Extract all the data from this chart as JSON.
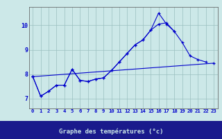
{
  "title": "Graphe des températures (°c)",
  "background_color": "#cce8e8",
  "plot_bg_color": "#cce8e8",
  "xaxis_bg_color": "#1a1a8c",
  "line_color": "#0000cc",
  "label_color": "#0000cc",
  "xlabel_text_color": "#cce8e8",
  "grid_color": "#9bbfbf",
  "x_ticks": [
    0,
    1,
    2,
    3,
    4,
    5,
    6,
    7,
    8,
    9,
    10,
    11,
    12,
    13,
    14,
    15,
    16,
    17,
    18,
    19,
    20,
    21,
    22,
    23
  ],
  "ylim": [
    6.6,
    10.75
  ],
  "yticks": [
    7,
    8,
    9,
    10
  ],
  "series1": [
    7.9,
    7.1,
    7.3,
    7.55,
    7.55,
    8.2,
    7.75,
    7.7,
    7.8,
    7.85,
    8.15,
    8.5,
    8.85,
    9.2,
    9.4,
    9.8,
    10.5,
    10.05,
    9.75,
    null,
    null,
    null,
    null,
    null
  ],
  "series2": [
    7.9,
    7.1,
    7.3,
    7.55,
    7.55,
    8.2,
    7.75,
    7.7,
    7.8,
    7.85,
    8.15,
    8.5,
    8.85,
    9.2,
    9.4,
    9.8,
    10.05,
    10.1,
    9.75,
    9.3,
    8.75,
    8.6,
    8.5,
    null
  ],
  "series3_x": [
    0,
    23
  ],
  "series3_y": [
    7.9,
    8.45
  ],
  "figsize": [
    3.2,
    2.0
  ],
  "dpi": 100
}
